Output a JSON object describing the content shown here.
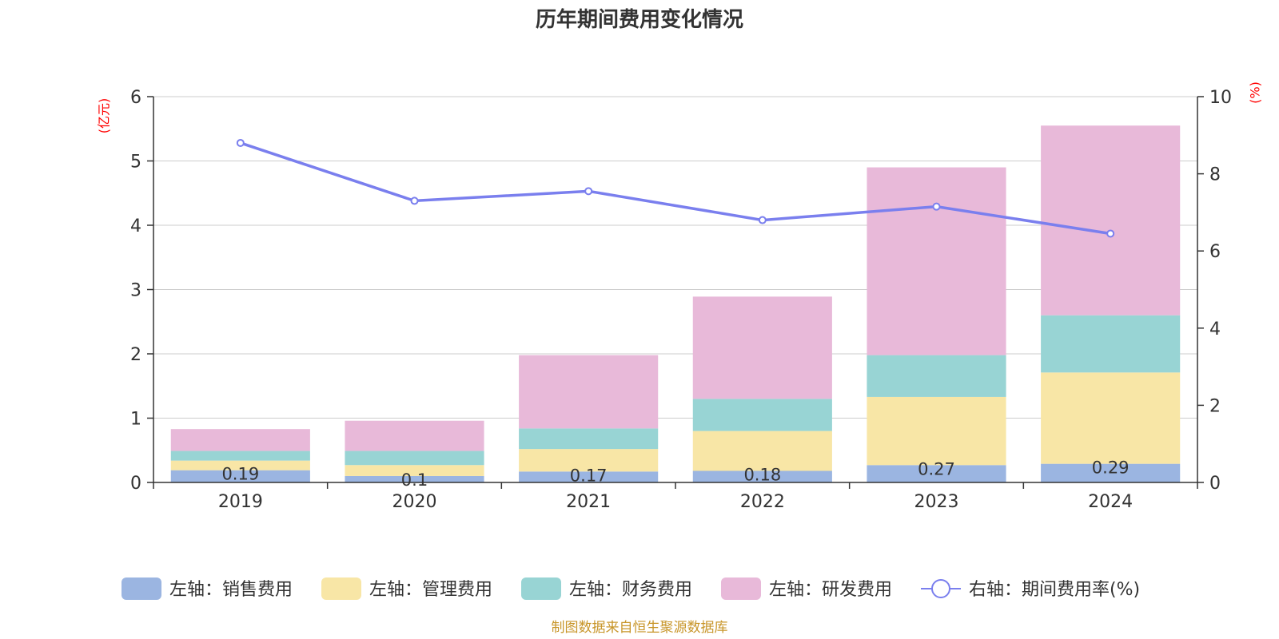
{
  "chart_data": {
    "type": "bar",
    "title": "历年期间费用变化情况",
    "categories": [
      "2019",
      "2020",
      "2021",
      "2022",
      "2023",
      "2024"
    ],
    "y_left": {
      "unit": "(亿元)",
      "ylim": [
        0,
        6
      ],
      "ticks": [
        0,
        1,
        2,
        3,
        4,
        5,
        6
      ]
    },
    "y_right": {
      "unit": "(%)",
      "ylim": [
        0,
        10
      ],
      "ticks": [
        0,
        2,
        4,
        6,
        8,
        10
      ]
    },
    "stacked": true,
    "series": [
      {
        "name": "左轴：销售费用",
        "axis": "left",
        "color": "#9bb5e1",
        "values": [
          0.19,
          0.1,
          0.17,
          0.18,
          0.27,
          0.29
        ],
        "labels": [
          "0.19",
          "0.1",
          "0.17",
          "0.18",
          "0.27",
          "0.29"
        ]
      },
      {
        "name": "左轴：管理费用",
        "axis": "left",
        "color": "#f8e6a6",
        "values": [
          0.15,
          0.17,
          0.35,
          0.62,
          1.06,
          1.42
        ]
      },
      {
        "name": "左轴：财务费用",
        "axis": "left",
        "color": "#98d4d4",
        "values": [
          0.15,
          0.22,
          0.32,
          0.5,
          0.65,
          0.89
        ]
      },
      {
        "name": "左轴：研发费用",
        "axis": "left",
        "color": "#e8b9d9",
        "values": [
          0.34,
          0.47,
          1.14,
          1.59,
          2.92,
          2.95
        ]
      },
      {
        "name": "右轴：期间费用率(%)",
        "axis": "right",
        "type": "line",
        "color": "#7a7fee",
        "values": [
          8.8,
          7.3,
          7.55,
          6.8,
          7.15,
          6.45
        ]
      }
    ],
    "grid": true,
    "legend": "bottom",
    "source": "制图数据来自恒生聚源数据库"
  }
}
